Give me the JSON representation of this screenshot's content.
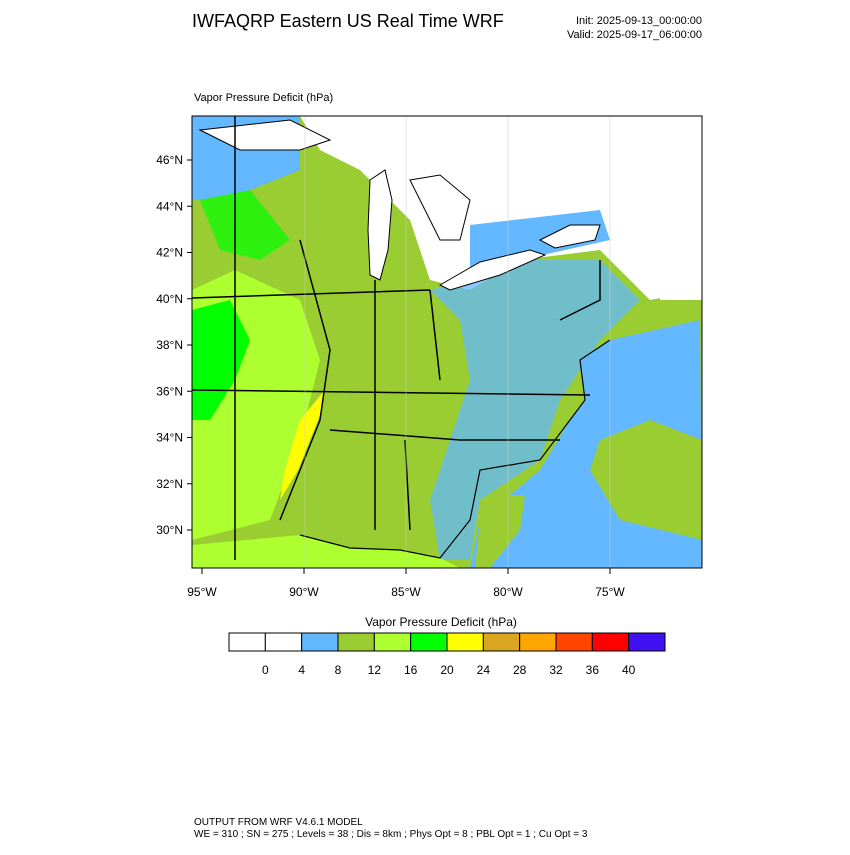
{
  "header": {
    "title": "IWFAQRP Eastern US Real Time WRF",
    "init": "Init: 2025-09-13_00:00:00",
    "valid": "Valid: 2025-09-17_06:00:00"
  },
  "map": {
    "label": "Vapor Pressure Deficit   (hPa)",
    "lat_labels": [
      "46°N",
      "44°N",
      "42°N",
      "40°N",
      "38°N",
      "36°N",
      "34°N",
      "32°N",
      "30°N"
    ],
    "lon_labels": [
      "95°W",
      "90°W",
      "85°W",
      "80°W",
      "75°W"
    ]
  },
  "colorbar": {
    "title": "Vapor Pressure Deficit  (hPa)",
    "labels": [
      "0",
      "4",
      "8",
      "12",
      "16",
      "20",
      "24",
      "28",
      "32",
      "36",
      "40"
    ],
    "colors": [
      "#ffffff",
      "#ffffff",
      "#63b8ff",
      "#9acd32",
      "#adff2f",
      "#00ff00",
      "#ffff00",
      "#daa520",
      "#ffa500",
      "#ff4500",
      "#ff0000",
      "#4010f0"
    ]
  },
  "footer": {
    "line1": "OUTPUT FROM WRF V4.6.1 MODEL",
    "line2": "WE = 310 ; SN = 275 ; Levels = 38 ; Dis = 8km ; Phys Opt = 8 ; PBL Opt = 1 ; Cu Opt = 3"
  }
}
